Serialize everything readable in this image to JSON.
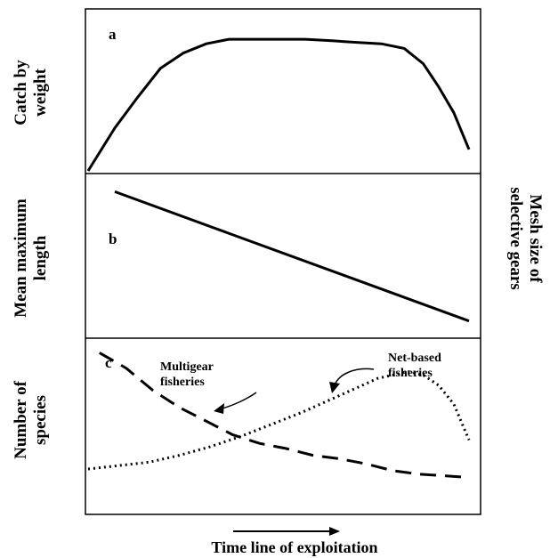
{
  "chart_data": [
    {
      "type": "line",
      "panel_label": "a",
      "title": "",
      "ylabel": "Catch by weight",
      "xlabel": "",
      "grid": false,
      "xlim": [
        0,
        100
      ],
      "ylim": [
        0,
        100
      ],
      "series": [
        {
          "style": "solid",
          "x": [
            0,
            7,
            13,
            19,
            25,
            31,
            37,
            43,
            50,
            57,
            64,
            70,
            77,
            83,
            88,
            92,
            96,
            100
          ],
          "y": [
            0,
            28,
            48,
            67,
            77,
            83,
            86,
            86,
            86,
            86,
            85,
            84,
            83,
            80,
            70,
            55,
            38,
            14
          ]
        }
      ]
    },
    {
      "type": "line",
      "panel_label": "b",
      "title": "",
      "ylabel": "Mean maximum length",
      "y2label": "Mesh size of selective gears",
      "xlabel": "",
      "grid": false,
      "xlim": [
        0,
        100
      ],
      "ylim": [
        0,
        100
      ],
      "series": [
        {
          "style": "solid",
          "x": [
            7,
            100
          ],
          "y": [
            94,
            10
          ]
        }
      ]
    },
    {
      "type": "line",
      "panel_label": "c",
      "title": "",
      "ylabel": "Number of species",
      "xlabel": "Time line of exploitation",
      "grid": false,
      "xlim": [
        0,
        100
      ],
      "ylim": [
        0,
        100
      ],
      "series": [
        {
          "name": "Multigear fisheries",
          "style": "dashed",
          "x": [
            3,
            10,
            17,
            24,
            31,
            38,
            45,
            52,
            59,
            66,
            73,
            80,
            87,
            94,
            100
          ],
          "y": [
            93,
            84,
            71,
            61,
            53,
            45,
            40,
            37,
            33,
            31,
            28,
            24,
            22,
            21,
            20
          ]
        },
        {
          "name": "Net-based fisheries",
          "style": "dotted",
          "x": [
            0,
            8,
            16,
            24,
            32,
            40,
            48,
            56,
            64,
            70,
            76,
            80,
            84,
            88,
            92,
            96,
            100
          ],
          "y": [
            25,
            27,
            29,
            33,
            38,
            44,
            51,
            58,
            66,
            72,
            78,
            80,
            82,
            80,
            74,
            63,
            42
          ]
        }
      ]
    }
  ],
  "annotations": {
    "multigear": "Multigear\nfisheries",
    "netbased": "Net-based\nfisheries"
  },
  "arrow": {
    "direction": "right"
  }
}
